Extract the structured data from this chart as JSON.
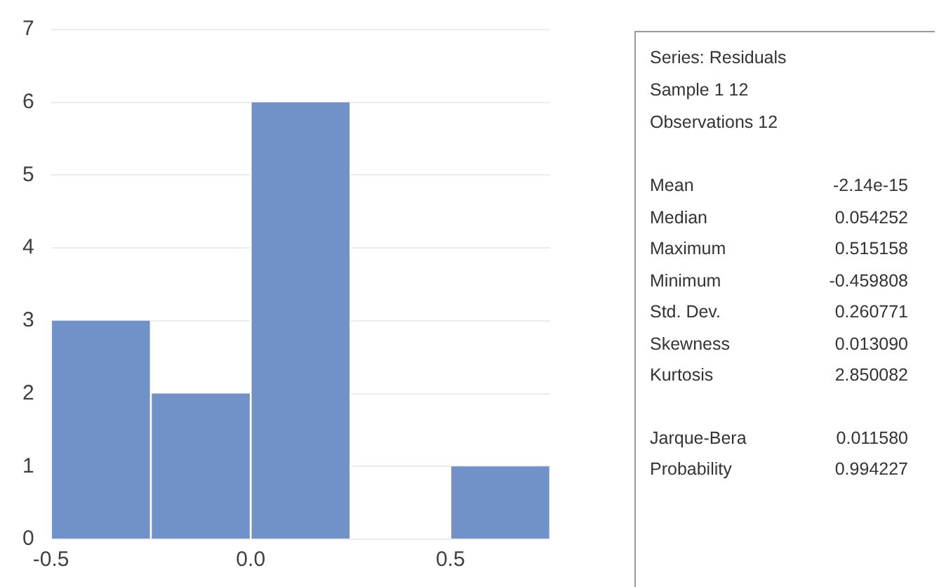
{
  "chart_data": {
    "type": "histogram",
    "bins": [
      -0.5,
      -0.25,
      0,
      0.25,
      0.5,
      0.75
    ],
    "values": [
      3,
      2,
      6,
      0,
      1
    ],
    "color": "#7191c9",
    "xlim": [
      -0.5,
      0.75
    ],
    "xticks": [
      {
        "value": -0.5,
        "label": "-0.5"
      },
      {
        "value": 0,
        "label": "0.0"
      },
      {
        "value": 0.5,
        "label": "0.5"
      }
    ],
    "ylim": [
      0,
      7
    ],
    "yticks": [
      0,
      1,
      2,
      3,
      4,
      5,
      6,
      7
    ],
    "grid": "y",
    "legend": false,
    "annotations": [
      "Series: Residuals",
      "Sample 1 12",
      "Observations 12",
      "Mean",
      "-2.14e-15",
      "Median",
      "0.054252",
      "Maximum",
      "0.515158",
      "Minimum",
      "-0.459808",
      "Std. Dev.",
      "0.260771",
      "Skewness",
      "0.013090",
      "Kurtosis",
      "2.850082",
      "Jarque-Bera",
      "0.011580",
      "Probability",
      "0.994227"
    ]
  }
}
